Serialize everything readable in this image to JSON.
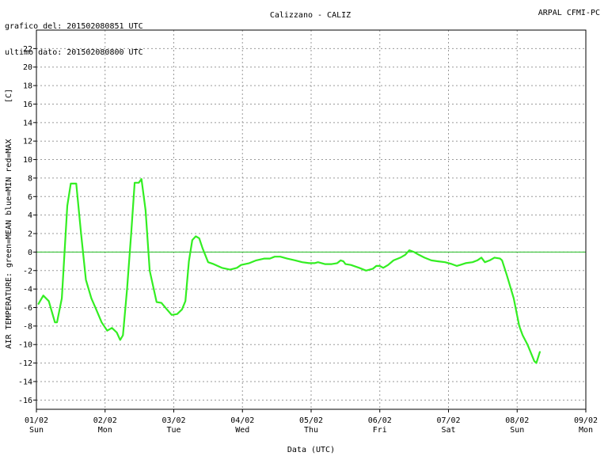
{
  "header": {
    "generated": "grafico del: 201502080851 UTC",
    "last_data": "ultimo dato: 201502080800 UTC",
    "station": "Calizzano - CALIZ",
    "agency": "ARPAL CFMI-PC"
  },
  "chart_data": {
    "type": "line",
    "title": "Calizzano - CALIZ",
    "xlabel": "Data (UTC)",
    "ylabel": "AIR TEMPERATURE: green=MEAN  blue=MIN  red=MAX",
    "yunit": "[C]",
    "ylim": [
      -17,
      24
    ],
    "yticks": [
      -16,
      -14,
      -12,
      -10,
      -8,
      -6,
      -4,
      -2,
      0,
      2,
      4,
      6,
      8,
      10,
      12,
      14,
      16,
      18,
      20,
      22
    ],
    "xlim": [
      0,
      8
    ],
    "xticks": [
      {
        "date": "01/02",
        "day": "Sun"
      },
      {
        "date": "02/02",
        "day": "Mon"
      },
      {
        "date": "03/02",
        "day": "Tue"
      },
      {
        "date": "04/02",
        "day": "Wed"
      },
      {
        "date": "05/02",
        "day": "Thu"
      },
      {
        "date": "06/02",
        "day": "Fri"
      },
      {
        "date": "07/02",
        "day": "Sat"
      },
      {
        "date": "08/02",
        "day": "Sun"
      },
      {
        "date": "09/02",
        "day": "Mon"
      }
    ],
    "grid": true,
    "zero_line": true,
    "colors": {
      "series": "#33ee22",
      "zero": "#22bb22",
      "grid": "#9a9a9a"
    },
    "series": [
      {
        "values": [
          [
            0.03,
            -5.6
          ],
          [
            0.1,
            -4.7
          ],
          [
            0.18,
            -5.3
          ],
          [
            0.27,
            -7.6
          ],
          [
            0.3,
            -7.6
          ],
          [
            0.37,
            -5.0
          ],
          [
            0.45,
            5.0
          ],
          [
            0.5,
            7.4
          ],
          [
            0.58,
            7.4
          ],
          [
            0.65,
            2.0
          ],
          [
            0.72,
            -3.0
          ],
          [
            0.8,
            -5.0
          ],
          [
            0.87,
            -6.2
          ],
          [
            0.95,
            -7.6
          ],
          [
            1.03,
            -8.5
          ],
          [
            1.1,
            -8.2
          ],
          [
            1.17,
            -8.7
          ],
          [
            1.22,
            -9.5
          ],
          [
            1.26,
            -9.0
          ],
          [
            1.32,
            -4.0
          ],
          [
            1.38,
            2.0
          ],
          [
            1.43,
            7.5
          ],
          [
            1.49,
            7.5
          ],
          [
            1.53,
            7.9
          ],
          [
            1.59,
            4.5
          ],
          [
            1.65,
            -2.0
          ],
          [
            1.75,
            -5.4
          ],
          [
            1.82,
            -5.5
          ],
          [
            1.9,
            -6.2
          ],
          [
            1.97,
            -6.8
          ],
          [
            2.05,
            -6.7
          ],
          [
            2.12,
            -6.2
          ],
          [
            2.17,
            -5.3
          ],
          [
            2.22,
            -1.0
          ],
          [
            2.27,
            1.3
          ],
          [
            2.32,
            1.7
          ],
          [
            2.37,
            1.5
          ],
          [
            2.42,
            0.4
          ],
          [
            2.5,
            -1.1
          ],
          [
            2.58,
            -1.3
          ],
          [
            2.7,
            -1.7
          ],
          [
            2.82,
            -1.9
          ],
          [
            2.92,
            -1.7
          ],
          [
            2.98,
            -1.4
          ],
          [
            3.1,
            -1.2
          ],
          [
            3.2,
            -0.9
          ],
          [
            3.32,
            -0.7
          ],
          [
            3.4,
            -0.7
          ],
          [
            3.47,
            -0.5
          ],
          [
            3.55,
            -0.5
          ],
          [
            3.65,
            -0.7
          ],
          [
            3.77,
            -0.9
          ],
          [
            3.87,
            -1.1
          ],
          [
            3.97,
            -1.2
          ],
          [
            4.05,
            -1.2
          ],
          [
            4.1,
            -1.1
          ],
          [
            4.2,
            -1.3
          ],
          [
            4.3,
            -1.3
          ],
          [
            4.38,
            -1.2
          ],
          [
            4.43,
            -0.9
          ],
          [
            4.47,
            -1.0
          ],
          [
            4.5,
            -1.3
          ],
          [
            4.58,
            -1.4
          ],
          [
            4.7,
            -1.7
          ],
          [
            4.8,
            -2.0
          ],
          [
            4.9,
            -1.8
          ],
          [
            4.95,
            -1.5
          ],
          [
            5.0,
            -1.5
          ],
          [
            5.05,
            -1.7
          ],
          [
            5.12,
            -1.4
          ],
          [
            5.2,
            -0.9
          ],
          [
            5.3,
            -0.6
          ],
          [
            5.37,
            -0.3
          ],
          [
            5.43,
            0.2
          ],
          [
            5.5,
            0.0
          ],
          [
            5.57,
            -0.3
          ],
          [
            5.65,
            -0.6
          ],
          [
            5.75,
            -0.9
          ],
          [
            5.85,
            -1.0
          ],
          [
            5.95,
            -1.1
          ],
          [
            6.05,
            -1.3
          ],
          [
            6.12,
            -1.5
          ],
          [
            6.17,
            -1.4
          ],
          [
            6.25,
            -1.2
          ],
          [
            6.35,
            -1.1
          ],
          [
            6.42,
            -0.9
          ],
          [
            6.48,
            -0.6
          ],
          [
            6.53,
            -1.1
          ],
          [
            6.6,
            -0.9
          ],
          [
            6.67,
            -0.6
          ],
          [
            6.75,
            -0.7
          ],
          [
            6.78,
            -0.9
          ],
          [
            6.85,
            -2.5
          ],
          [
            6.95,
            -5.0
          ],
          [
            7.03,
            -8.0
          ],
          [
            7.08,
            -9.0
          ],
          [
            7.15,
            -10.0
          ],
          [
            7.2,
            -10.9
          ],
          [
            7.25,
            -11.8
          ],
          [
            7.28,
            -12.0
          ],
          [
            7.33,
            -10.8
          ]
        ]
      }
    ]
  }
}
